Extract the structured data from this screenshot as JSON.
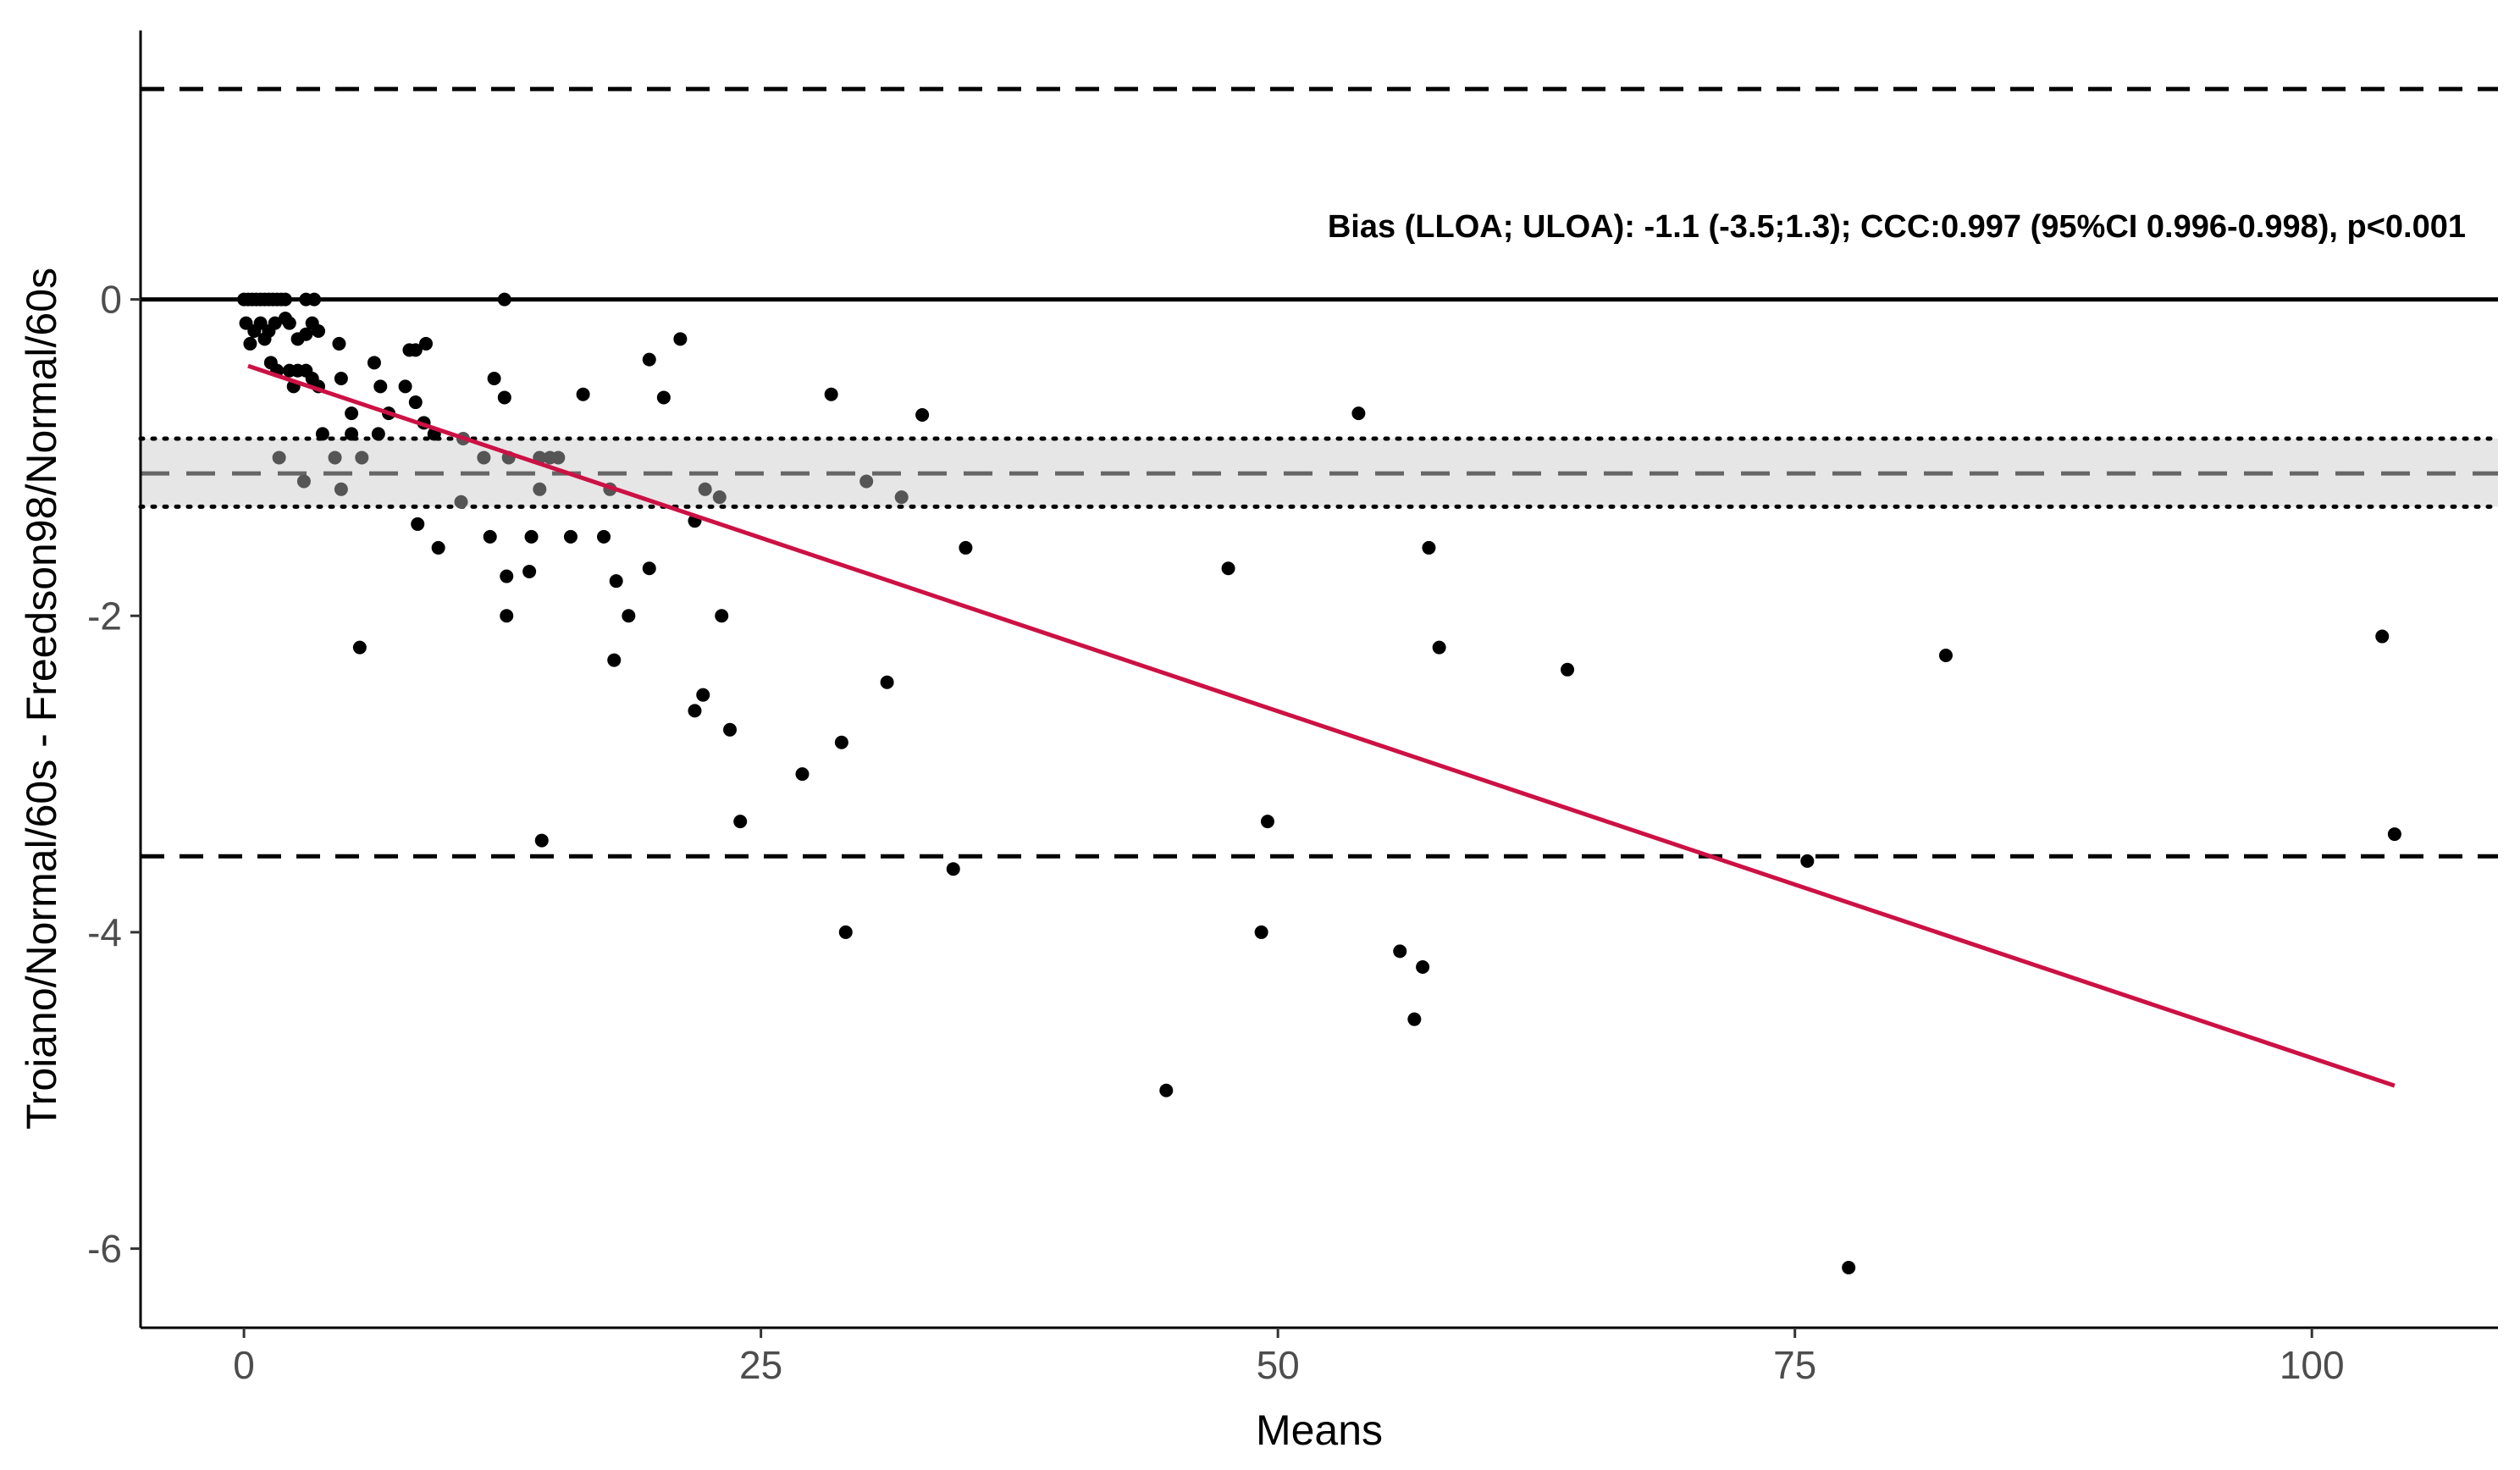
{
  "chart_data": {
    "type": "scatter",
    "title": "",
    "xlabel": "Means",
    "ylabel": "Troiano/Normal/60s - Freedson98/Normal/60s",
    "xlim": [
      -5,
      109
    ],
    "ylim": [
      -6.5,
      1.7
    ],
    "x_ticks": [
      0,
      25,
      50,
      75,
      100
    ],
    "y_ticks": [
      0,
      -2,
      -4,
      -6
    ],
    "grid": false,
    "legend": "none",
    "annotation": "Bias (LLOA; ULOA): -1.1 (-3.5;1.3); CCC:0.997 (95%CI 0.996-0.998), p<0.001",
    "bias": -1.1,
    "bias_ci": [
      -1.31,
      -0.88
    ],
    "loa": [
      -3.52,
      1.33
    ],
    "zero_line": 0,
    "regression": {
      "x": [
        0.2,
        104
      ],
      "y": [
        -0.42,
        -4.97
      ]
    },
    "colors": {
      "points": "#000000",
      "points_in_band": "#555555",
      "regression": "#cc1144",
      "band": "#e6e6e6",
      "dash_bias": "#666666"
    },
    "points": [
      [
        0.0,
        0.0
      ],
      [
        0.2,
        0.0
      ],
      [
        0.4,
        0.0
      ],
      [
        0.6,
        0.0
      ],
      [
        0.8,
        0.0
      ],
      [
        1.0,
        0.0
      ],
      [
        1.2,
        0.0
      ],
      [
        1.4,
        0.0
      ],
      [
        1.6,
        0.0
      ],
      [
        1.8,
        0.0
      ],
      [
        2.0,
        0.0
      ],
      [
        3.0,
        0.0
      ],
      [
        3.4,
        0.0
      ],
      [
        12.6,
        0.0
      ],
      [
        0.1,
        -0.15
      ],
      [
        0.3,
        -0.28
      ],
      [
        0.5,
        -0.2
      ],
      [
        0.8,
        -0.15
      ],
      [
        1.0,
        -0.25
      ],
      [
        1.2,
        -0.2
      ],
      [
        1.5,
        -0.15
      ],
      [
        2.0,
        -0.12
      ],
      [
        2.2,
        -0.15
      ],
      [
        2.6,
        -0.25
      ],
      [
        3.0,
        -0.22
      ],
      [
        3.3,
        -0.15
      ],
      [
        3.6,
        -0.2
      ],
      [
        1.3,
        -0.4
      ],
      [
        1.6,
        -0.45
      ],
      [
        2.2,
        -0.45
      ],
      [
        2.6,
        -0.45
      ],
      [
        3.0,
        -0.45
      ],
      [
        3.3,
        -0.5
      ],
      [
        2.4,
        -0.55
      ],
      [
        3.6,
        -0.55
      ],
      [
        4.6,
        -0.28
      ],
      [
        4.7,
        -0.5
      ],
      [
        6.3,
        -0.4
      ],
      [
        5.2,
        -0.72
      ],
      [
        6.6,
        -0.55
      ],
      [
        7.0,
        -0.72
      ],
      [
        7.8,
        -0.55
      ],
      [
        8.0,
        -0.32
      ],
      [
        8.3,
        -0.32
      ],
      [
        8.3,
        -0.65
      ],
      [
        8.8,
        -0.28
      ],
      [
        8.7,
        -0.78
      ],
      [
        9.2,
        -0.85
      ],
      [
        6.5,
        -0.85
      ],
      [
        3.8,
        -0.85
      ],
      [
        5.2,
        -0.85
      ],
      [
        4.4,
        -1.0
      ],
      [
        5.7,
        -1.0
      ],
      [
        1.7,
        -1.0
      ],
      [
        2.9,
        -1.15
      ],
      [
        4.7,
        -1.2
      ],
      [
        10.6,
        -0.88
      ],
      [
        11.6,
        -1.0
      ],
      [
        12.8,
        -1.0
      ],
      [
        14.3,
        -1.0
      ],
      [
        14.8,
        -1.0
      ],
      [
        15.2,
        -1.0
      ],
      [
        14.3,
        -1.2
      ],
      [
        12.1,
        -0.5
      ],
      [
        12.6,
        -0.62
      ],
      [
        8.4,
        -1.42
      ],
      [
        9.4,
        -1.57
      ],
      [
        10.5,
        -1.28
      ],
      [
        11.9,
        -1.5
      ],
      [
        12.7,
        -1.75
      ],
      [
        13.8,
        -1.72
      ],
      [
        13.9,
        -1.5
      ],
      [
        15.8,
        -1.5
      ],
      [
        17.4,
        -1.5
      ],
      [
        17.7,
        -1.2
      ],
      [
        18.0,
        -1.78
      ],
      [
        16.4,
        -0.6
      ],
      [
        12.7,
        -2.0
      ],
      [
        17.9,
        -2.28
      ],
      [
        18.6,
        -2.0
      ],
      [
        19.6,
        -1.7
      ],
      [
        19.6,
        -0.38
      ],
      [
        20.3,
        -0.62
      ],
      [
        21.1,
        -0.25
      ],
      [
        21.8,
        -1.4
      ],
      [
        22.3,
        -1.2
      ],
      [
        23.0,
        -1.25
      ],
      [
        21.8,
        -2.6
      ],
      [
        22.2,
        -2.5
      ],
      [
        23.1,
        -2.0
      ],
      [
        23.5,
        -2.72
      ],
      [
        24.0,
        -3.3
      ],
      [
        27.0,
        -3.0
      ],
      [
        28.9,
        -2.8
      ],
      [
        29.1,
        -4.0
      ],
      [
        31.1,
        -2.42
      ],
      [
        14.4,
        -3.42
      ],
      [
        5.6,
        -2.2
      ],
      [
        28.4,
        -0.6
      ],
      [
        30.1,
        -1.15
      ],
      [
        31.8,
        -1.25
      ],
      [
        32.8,
        -0.73
      ],
      [
        34.3,
        -3.6
      ],
      [
        34.9,
        -1.57
      ],
      [
        44.6,
        -5.0
      ],
      [
        47.6,
        -1.7
      ],
      [
        49.2,
        -4.0
      ],
      [
        49.5,
        -3.3
      ],
      [
        53.9,
        -0.72
      ],
      [
        55.9,
        -4.12
      ],
      [
        56.6,
        -4.55
      ],
      [
        57.0,
        -4.22
      ],
      [
        57.3,
        -1.57
      ],
      [
        57.8,
        -2.2
      ],
      [
        64.0,
        -2.34
      ],
      [
        75.6,
        -3.55
      ],
      [
        77.6,
        -6.12
      ],
      [
        82.3,
        -2.25
      ],
      [
        103.4,
        -2.13
      ],
      [
        104.0,
        -3.38
      ]
    ]
  }
}
